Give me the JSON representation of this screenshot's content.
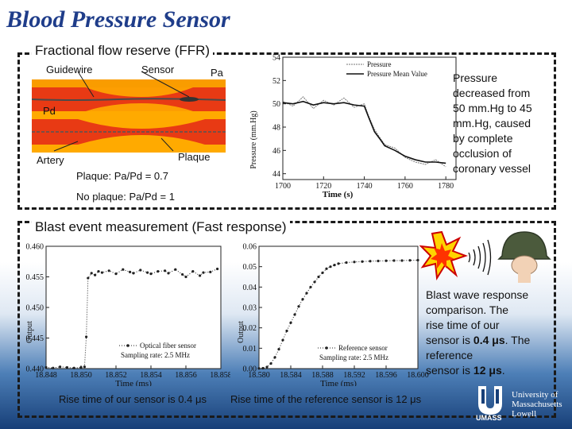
{
  "slide": {
    "title": "Blood Pressure Sensor",
    "ffr_section": {
      "heading": "Fractional flow reserve (FFR)",
      "diagram_labels": {
        "guidewire": "Guidewire",
        "sensor": "Sensor",
        "pa": "Pa",
        "pd": "Pd",
        "artery": "Artery",
        "plaque": "Plaque"
      },
      "plaque_ratio": "Plaque: Pa/Pd = 0.7",
      "no_plaque_ratio": "No plaque: Pa/Pd = 1",
      "note": "Pressure decreased from 50 mmHg to 45 mmHg, caused by complete occlusion of coronary vessel",
      "note_lines": [
        "Pressure",
        "decreased from",
        "50 mm.Hg to 45",
        "mm.Hg, caused",
        "by complete",
        "occlusion of",
        "coronary vessel"
      ]
    },
    "blast_section": {
      "heading": "Blast event measurement (Fast response)",
      "caption_ours": "Rise time of our sensor is 0.4 μs",
      "caption_reference": "Rise time of the reference sensor is 12 μs",
      "note_lines": [
        "Blast wave response",
        "comparison. The",
        "rise time of our",
        "sensor is ",
        "0.4 μs",
        ". The reference",
        "sensor is ",
        "12 μs",
        "."
      ]
    },
    "logo": {
      "line1": "University of",
      "line2": "Massachusetts",
      "line3": "Lowell",
      "sub": "UMASS"
    },
    "colors": {
      "title": "#1f3d8a",
      "artery": "#cc2200",
      "plaque": "#ffaa00",
      "data_series": "#222222"
    },
    "icons": [
      "explosion-icon",
      "sound-wave-icon",
      "helmet-icon",
      "university-logo-icon"
    ]
  },
  "chart_data": [
    {
      "type": "line",
      "x": [
        1700,
        1705,
        1710,
        1715,
        1720,
        1725,
        1730,
        1735,
        1740,
        1742,
        1745,
        1748,
        1750,
        1755,
        1760,
        1765,
        1770,
        1775,
        1780
      ],
      "series": [
        {
          "name": "Pressure",
          "values": [
            50.2,
            49.8,
            50.6,
            49.6,
            50.3,
            49.9,
            50.5,
            49.7,
            50.0,
            49.0,
            47.8,
            47.0,
            46.5,
            46.2,
            45.4,
            45.0,
            44.8,
            45.2,
            44.6
          ]
        },
        {
          "name": "Pressure Mean Value",
          "values": [
            50.1,
            50.0,
            50.2,
            49.9,
            50.1,
            50.0,
            50.1,
            49.9,
            49.8,
            48.9,
            47.6,
            46.9,
            46.4,
            46.0,
            45.5,
            45.2,
            45.0,
            45.0,
            44.9
          ]
        }
      ],
      "xlabel": "Time (s)",
      "ylabel": "Pressure (mm.Hg)",
      "xticks": [
        "1700",
        "1720",
        "1740",
        "1760",
        "1780"
      ],
      "yticks": [
        "44",
        "46",
        "48",
        "50",
        "52",
        "54"
      ],
      "xlim": [
        1700,
        1785
      ],
      "ylim": [
        43.5,
        54
      ],
      "legend": "top-right"
    },
    {
      "type": "scatter",
      "x": [
        18.848,
        18.8484,
        18.8488,
        18.8492,
        18.8496,
        18.85,
        18.8502,
        18.8503,
        18.8504,
        18.8506,
        18.8508,
        18.851,
        18.8512,
        18.8516,
        18.852,
        18.8524,
        18.8528,
        18.853,
        18.8534,
        18.8538,
        18.854,
        18.8544,
        18.8548,
        18.855,
        18.8554,
        18.8558,
        18.856,
        18.8564,
        18.8568,
        18.857,
        18.8574,
        18.8578
      ],
      "series": [
        {
          "name": "Optical fiber sensor",
          "values": [
            0.4402,
            0.4401,
            0.4403,
            0.4402,
            0.4401,
            0.4402,
            0.4403,
            0.4452,
            0.4548,
            0.4556,
            0.4553,
            0.4559,
            0.4557,
            0.456,
            0.4555,
            0.4562,
            0.4558,
            0.4556,
            0.4561,
            0.4557,
            0.4555,
            0.4559,
            0.456,
            0.4556,
            0.4562,
            0.4554,
            0.455,
            0.4559,
            0.4552,
            0.4557,
            0.4558,
            0.4563
          ]
        }
      ],
      "annotation": "Sampling rate: 2.5 MHz",
      "xlabel": "Time (ms)",
      "ylabel": "Output",
      "xticks": [
        "18.848",
        "18.850",
        "18.852",
        "18.854",
        "18.856",
        "18.858"
      ],
      "yticks": [
        "0.440",
        "0.445",
        "0.450",
        "0.455",
        "0.460"
      ],
      "xlim": [
        18.848,
        18.858
      ],
      "ylim": [
        0.44,
        0.46
      ],
      "legend": "bottom-right"
    },
    {
      "type": "scatter",
      "x": [
        18.58,
        18.5805,
        18.581,
        18.5815,
        18.582,
        18.5825,
        18.583,
        18.5835,
        18.584,
        18.5845,
        18.585,
        18.5855,
        18.586,
        18.5865,
        18.587,
        18.5875,
        18.588,
        18.5885,
        18.589,
        18.5895,
        18.59,
        18.591,
        18.592,
        18.593,
        18.594,
        18.595,
        18.596,
        18.597,
        18.598,
        18.599,
        18.6
      ],
      "series": [
        {
          "name": "Reference sensor",
          "values": [
            0.0001,
            0.0002,
            0.0008,
            0.0025,
            0.0055,
            0.0095,
            0.014,
            0.0185,
            0.0225,
            0.0265,
            0.0305,
            0.034,
            0.037,
            0.04,
            0.0425,
            0.045,
            0.047,
            0.049,
            0.05,
            0.0508,
            0.0515,
            0.052,
            0.0523,
            0.0525,
            0.0527,
            0.0528,
            0.0529,
            0.053,
            0.053,
            0.0531,
            0.0532
          ]
        }
      ],
      "annotation": "Sampling rate: 2.5 MHz",
      "xlabel": "Time (ms)",
      "ylabel": "Output",
      "xticks": [
        "18.580",
        "18.584",
        "18.588",
        "18.592",
        "18.596",
        "18.600"
      ],
      "yticks": [
        "0.00",
        "0.01",
        "0.02",
        "0.03",
        "0.04",
        "0.05",
        "0.06"
      ],
      "xlim": [
        18.58,
        18.6
      ],
      "ylim": [
        0.0,
        0.06
      ],
      "legend": "bottom-right"
    }
  ]
}
